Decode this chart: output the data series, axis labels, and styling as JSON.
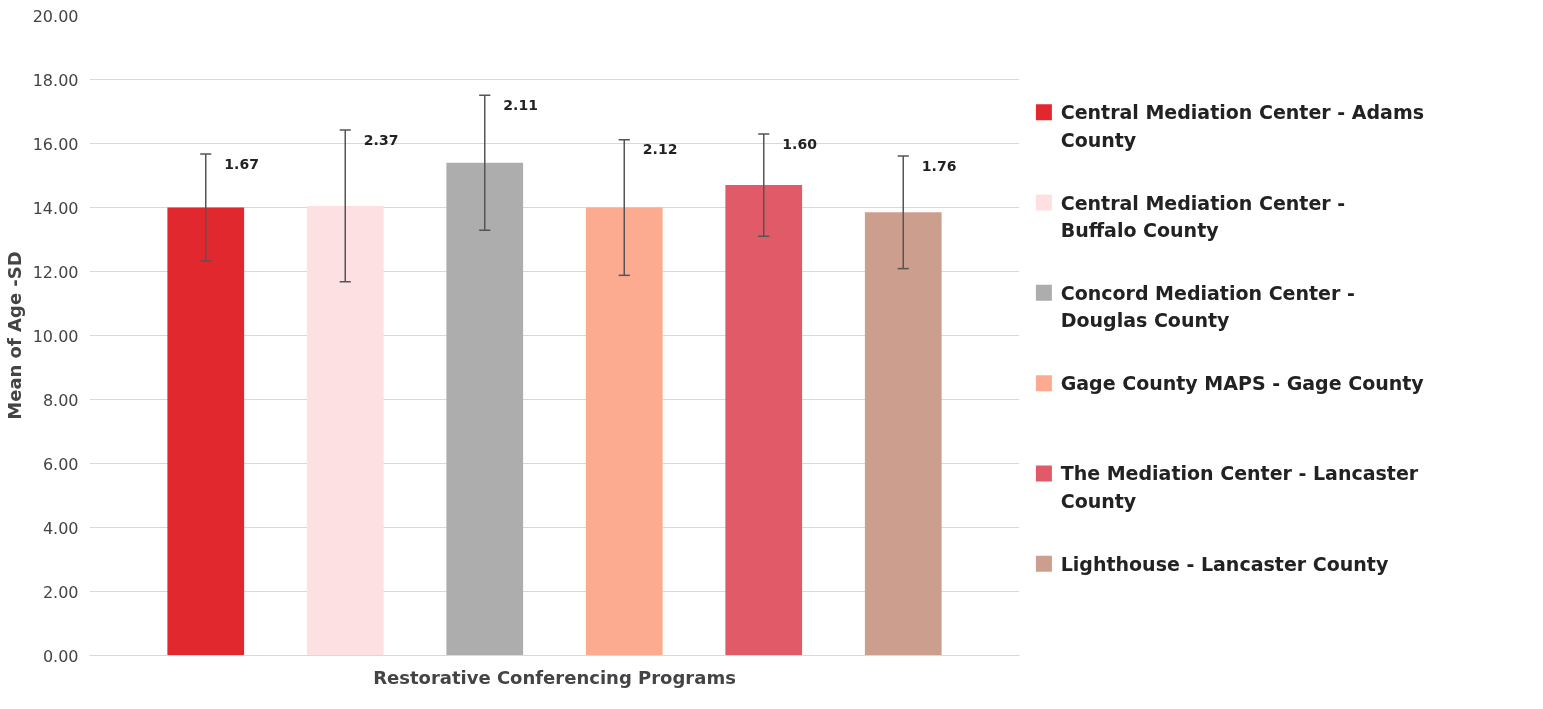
{
  "chart_data": {
    "type": "bar",
    "ylabel": "Mean of Age -SD",
    "categories": [
      "Restorative Conferencing Programs"
    ],
    "series": [
      {
        "name": "Central Mediation Center - Adams County",
        "color": "#e0282e",
        "values": [
          14.0
        ],
        "errors": [
          1.67
        ]
      },
      {
        "name": "Central Mediation Center - Buffalo County",
        "color": "#fde0e1",
        "values": [
          14.05
        ],
        "errors": [
          2.37
        ]
      },
      {
        "name": "Concord Mediation Center - Douglas County",
        "color": "#adadad",
        "values": [
          15.4
        ],
        "errors": [
          2.11
        ]
      },
      {
        "name": "Gage County MAPS - Gage County",
        "color": "#fcaa90",
        "values": [
          14.0
        ],
        "errors": [
          2.12
        ]
      },
      {
        "name": "The Mediation Center - Lancaster County",
        "color": "#e05b67",
        "values": [
          14.7
        ],
        "errors": [
          1.6
        ]
      },
      {
        "name": "Lighthouse - Lancaster County",
        "color": "#cb9e8e",
        "values": [
          13.85
        ],
        "errors": [
          1.76
        ]
      }
    ],
    "annotations": [
      "1.67",
      "2.37",
      "2.11",
      "2.12",
      "1.60",
      "1.76"
    ],
    "ylim": [
      0,
      20
    ],
    "yticks": [
      {
        "value": 0,
        "label": "0.00"
      },
      {
        "value": 2,
        "label": "2.00"
      },
      {
        "value": 4,
        "label": "4.00"
      },
      {
        "value": 6,
        "label": "6.00"
      },
      {
        "value": 8,
        "label": "8.00"
      },
      {
        "value": 10,
        "label": "10.00"
      },
      {
        "value": 12,
        "label": "12.00"
      },
      {
        "value": 14,
        "label": "14.00"
      },
      {
        "value": 16,
        "label": "16.00"
      },
      {
        "value": 18,
        "label": "18.00"
      },
      {
        "value": 20,
        "label": "20.00"
      }
    ],
    "grid": "y",
    "legend": "right"
  }
}
